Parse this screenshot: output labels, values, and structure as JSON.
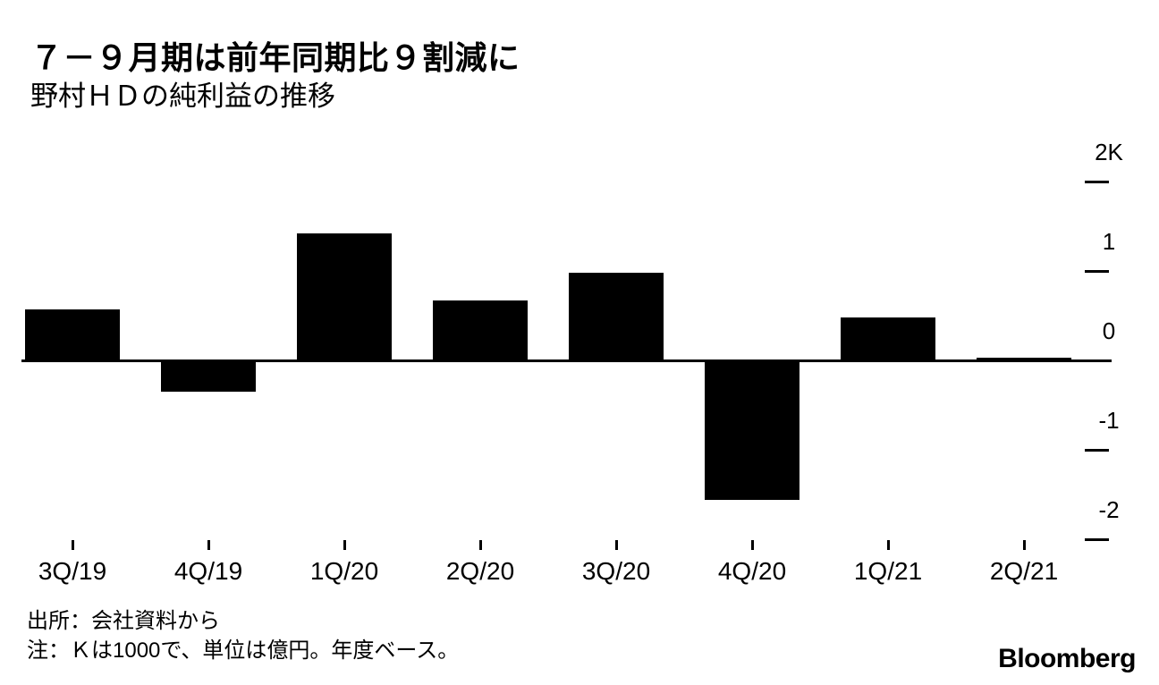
{
  "header": {
    "title": "７－９月期は前年同期比９割減に",
    "subtitle": "野村ＨＤの純利益の推移"
  },
  "chart_data": {
    "type": "bar",
    "title": "７－９月期は前年同期比９割減に",
    "subtitle": "野村ＨＤの純利益の推移",
    "categories": [
      "3Q/19",
      "4Q/19",
      "1Q/20",
      "2Q/20",
      "3Q/20",
      "4Q/20",
      "1Q/21",
      "2Q/21"
    ],
    "values": [
      571,
      -345,
      1425,
      678,
      984,
      -1554,
      485,
      32
    ],
    "unit": "億円",
    "bar_color": "#000000",
    "background_color": "#ffffff",
    "grid": false,
    "axis_side": "right",
    "ylim": [
      -2000,
      2000
    ],
    "yticks": [
      {
        "label": "2K",
        "value": 2000
      },
      {
        "label": "1",
        "value": 1000
      },
      {
        "label": "0",
        "value": 0
      },
      {
        "label": "-1",
        "value": -1000
      },
      {
        "label": "-2",
        "value": -2000
      }
    ]
  },
  "footer": {
    "source": "出所：会社資料から",
    "note": "注：Ｋは1000で、単位は億円。年度ベース。",
    "brand": "Bloomberg"
  }
}
